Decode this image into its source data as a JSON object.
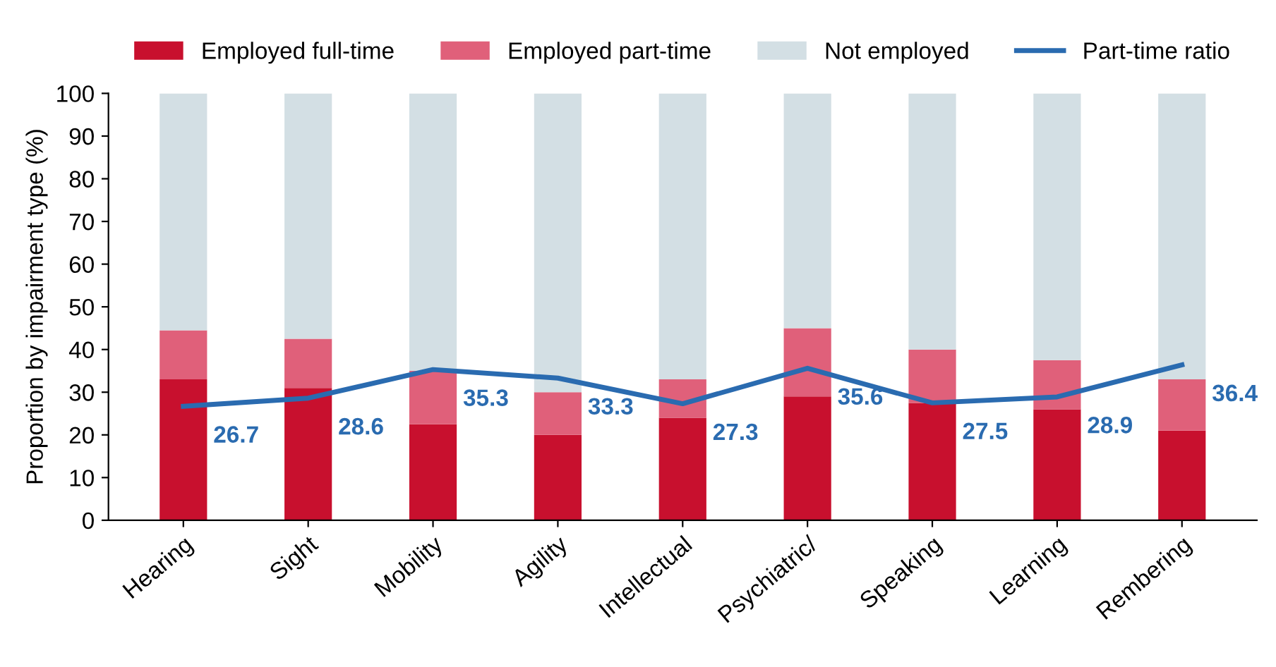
{
  "chart_data": {
    "type": "bar",
    "stacked": true,
    "ylabel": "Proportion by impairment type (%)",
    "categories": [
      "Hearing",
      "Sight",
      "Mobility",
      "Agility",
      "Intellectual",
      "Psychiatric/",
      "Speaking",
      "Learning",
      "Rembering"
    ],
    "series": [
      {
        "name": "Employed full-time",
        "color": "#c8102e",
        "values": [
          33,
          31,
          22.5,
          20,
          24,
          29,
          27.5,
          26,
          21
        ]
      },
      {
        "name": "Employed part-time",
        "color": "#e0607a",
        "values": [
          11.5,
          11.5,
          12.5,
          10,
          9,
          16,
          12.5,
          11.5,
          12
        ]
      },
      {
        "name": "Not employed",
        "color": "#d3dfe4",
        "values": [
          55.5,
          57.5,
          65,
          70,
          67,
          55,
          60,
          62.5,
          67
        ]
      },
      {
        "name": "Part-time ratio",
        "color": "#2a6bb0",
        "type": "line",
        "values": [
          26.7,
          28.6,
          35.3,
          33.3,
          27.3,
          35.6,
          27.5,
          28.9,
          36.4
        ],
        "value_labels": [
          "26.7",
          "28.6",
          "35.3",
          "33.3",
          "27.3",
          "35.6",
          "27.5",
          "28.9",
          "36.4"
        ]
      }
    ],
    "ylim": [
      0,
      100
    ],
    "yticks": [
      0,
      10,
      20,
      30,
      40,
      50,
      60,
      70,
      80,
      90,
      100
    ],
    "grid": false,
    "legend": "top",
    "marker": "none",
    "line_style": "solid"
  }
}
